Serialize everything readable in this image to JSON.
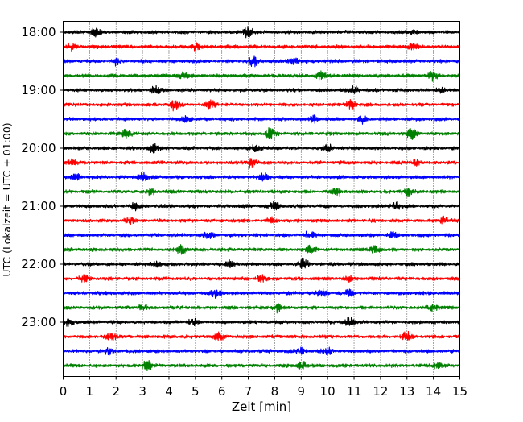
{
  "chart_data": {
    "type": "line",
    "subtype": "helicorder",
    "xlabel": "Zeit  [min]",
    "ylabel": "UTC (Lokalzeit = UTC + 01:00)",
    "xlim": [
      0,
      15
    ],
    "x_ticks": [
      "0",
      "1",
      "2",
      "3",
      "4",
      "5",
      "6",
      "7",
      "8",
      "9",
      "10",
      "11",
      "12",
      "13",
      "14",
      "15"
    ],
    "y_ticks": [
      "18:00",
      "19:00",
      "20:00",
      "21:00",
      "22:00",
      "23:00"
    ],
    "grid": "vertical dotted at each minute",
    "trace_minutes": 15,
    "trace_start": "18:00",
    "trace_count": 24,
    "color_cycle": [
      "#000000",
      "#ff0000",
      "#0000ff",
      "#008000"
    ],
    "bursts": [
      [
        [
          1.2,
          0.8
        ],
        [
          7.0,
          1.0
        ],
        [
          13.2,
          0.6
        ]
      ],
      [
        [
          0.3,
          0.6
        ],
        [
          5.0,
          0.6
        ],
        [
          13.2,
          0.6
        ]
      ],
      [
        [
          2.0,
          0.6
        ],
        [
          7.2,
          0.8
        ],
        [
          8.7,
          0.5
        ]
      ],
      [
        [
          4.5,
          0.6
        ],
        [
          9.7,
          0.8
        ],
        [
          14.0,
          0.8
        ]
      ],
      [
        [
          3.5,
          0.7
        ],
        [
          11.0,
          0.8
        ],
        [
          14.3,
          0.5
        ]
      ],
      [
        [
          4.2,
          1.0
        ],
        [
          10.9,
          0.8
        ],
        [
          5.6,
          0.6
        ]
      ],
      [
        [
          4.7,
          0.6
        ],
        [
          9.5,
          0.6
        ],
        [
          11.3,
          0.6
        ]
      ],
      [
        [
          2.4,
          0.8
        ],
        [
          7.8,
          0.9
        ],
        [
          13.2,
          1.0
        ]
      ],
      [
        [
          3.4,
          0.9
        ],
        [
          7.3,
          0.7
        ],
        [
          10.0,
          0.7
        ]
      ],
      [
        [
          0.3,
          0.5
        ],
        [
          7.1,
          0.9
        ],
        [
          13.3,
          0.6
        ]
      ],
      [
        [
          0.5,
          0.5
        ],
        [
          3.0,
          0.8
        ],
        [
          7.6,
          0.6
        ]
      ],
      [
        [
          3.3,
          0.8
        ],
        [
          10.4,
          0.7
        ],
        [
          13.0,
          0.9
        ]
      ],
      [
        [
          2.7,
          0.6
        ],
        [
          8.0,
          0.7
        ],
        [
          12.6,
          0.7
        ]
      ],
      [
        [
          2.5,
          0.6
        ],
        [
          7.9,
          0.7
        ],
        [
          14.4,
          0.7
        ]
      ],
      [
        [
          5.5,
          0.6
        ],
        [
          9.3,
          0.7
        ],
        [
          12.5,
          0.5
        ]
      ],
      [
        [
          4.5,
          0.8
        ],
        [
          9.4,
          0.8
        ],
        [
          11.8,
          0.8
        ]
      ],
      [
        [
          3.5,
          0.5
        ],
        [
          6.3,
          0.6
        ],
        [
          9.1,
          1.0
        ]
      ],
      [
        [
          0.8,
          0.6
        ],
        [
          7.5,
          0.7
        ],
        [
          10.8,
          0.6
        ]
      ],
      [
        [
          5.8,
          0.8
        ],
        [
          9.8,
          0.6
        ],
        [
          10.8,
          0.6
        ]
      ],
      [
        [
          3.0,
          0.6
        ],
        [
          8.1,
          0.8
        ],
        [
          14.0,
          0.7
        ]
      ],
      [
        [
          0.2,
          0.8
        ],
        [
          4.9,
          0.6
        ],
        [
          10.8,
          0.8
        ]
      ],
      [
        [
          1.8,
          0.8
        ],
        [
          5.9,
          0.7
        ],
        [
          13.0,
          0.8
        ]
      ],
      [
        [
          1.7,
          0.5
        ],
        [
          9.0,
          0.6
        ],
        [
          10.0,
          0.6
        ]
      ],
      [
        [
          3.2,
          1.0
        ],
        [
          9.0,
          0.8
        ],
        [
          14.1,
          0.7
        ]
      ]
    ]
  }
}
